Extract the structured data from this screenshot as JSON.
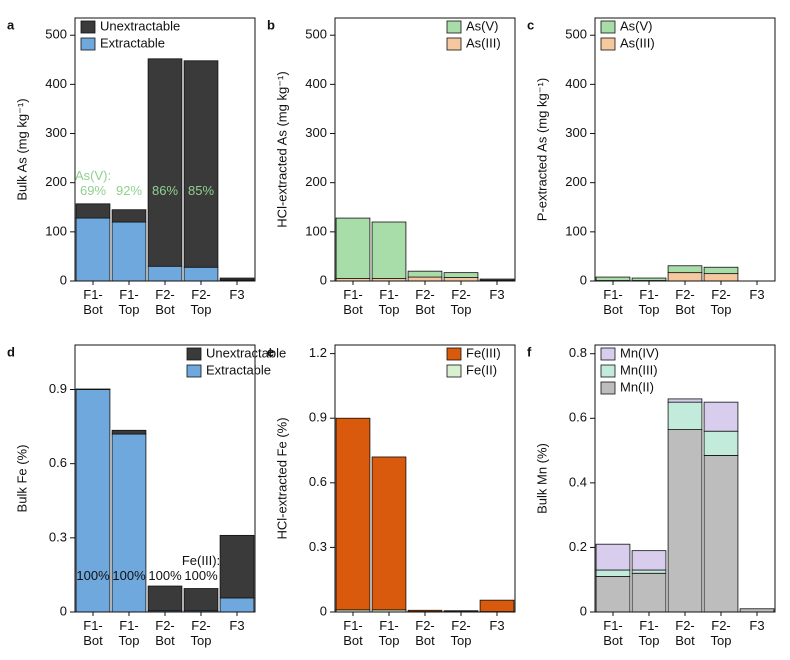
{
  "chart_data": [
    {
      "type": "bar",
      "stacked": true,
      "label": "a",
      "ylabel": "Bulk As (mg kg⁻¹)",
      "categories": [
        "F1-\nBot",
        "F1-\nTop",
        "F2-\nBot",
        "F2-\nTop",
        "F3"
      ],
      "series": [
        {
          "name": "Extractable",
          "color": "#6fa8dc",
          "values": [
            128,
            120,
            30,
            28,
            2
          ]
        },
        {
          "name": "Unextractable",
          "color": "#3a3a3a",
          "values": [
            29,
            25,
            422,
            420,
            4
          ]
        }
      ],
      "ylim": [
        0,
        535
      ],
      "yticks": [
        0,
        100,
        200,
        300,
        400,
        500
      ],
      "legend": "upper left",
      "annotations": [
        "As(V):\n69%",
        "92%",
        "86%",
        "85%",
        null
      ],
      "annotation_color": "#8fd18f"
    },
    {
      "type": "bar",
      "stacked": true,
      "label": "b",
      "ylabel": "HCl-extracted As (mg kg⁻¹)",
      "categories": [
        "F1-\nBot",
        "F1-\nTop",
        "F2-\nBot",
        "F2-\nTop",
        "F3"
      ],
      "series": [
        {
          "name": "As(III)",
          "color": "#f6c89f",
          "values": [
            5,
            5,
            8,
            7,
            2
          ]
        },
        {
          "name": "As(V)",
          "color": "#a8dca8",
          "values": [
            123,
            115,
            12,
            10,
            2
          ]
        }
      ],
      "ylim": [
        0,
        535
      ],
      "yticks": [
        0,
        100,
        200,
        300,
        400,
        500
      ],
      "legend": "upper right"
    },
    {
      "type": "bar",
      "stacked": true,
      "label": "c",
      "ylabel": "P-extracted As (mg kg⁻¹)",
      "categories": [
        "F1-\nBot",
        "F1-\nTop",
        "F2-\nBot",
        "F2-\nTop",
        "F3"
      ],
      "series": [
        {
          "name": "As(III)",
          "color": "#f6c89f",
          "values": [
            1,
            1,
            17,
            15,
            0
          ]
        },
        {
          "name": "As(V)",
          "color": "#a8dca8",
          "values": [
            7,
            5,
            14,
            13,
            0
          ]
        }
      ],
      "ylim": [
        0,
        535
      ],
      "yticks": [
        0,
        100,
        200,
        300,
        400,
        500
      ],
      "legend": "upper left"
    },
    {
      "type": "bar",
      "stacked": true,
      "label": "d",
      "ylabel": "Bulk Fe (%)",
      "categories": [
        "F1-\nBot",
        "F1-\nTop",
        "F2-\nBot",
        "F2-\nTop",
        "F3"
      ],
      "series": [
        {
          "name": "Extractable",
          "color": "#6fa8dc",
          "values": [
            0.9,
            0.72,
            0.005,
            0.005,
            0.057
          ]
        },
        {
          "name": "Unextractable",
          "color": "#3a3a3a",
          "values": [
            0.002,
            0.015,
            0.1,
            0.09,
            0.253
          ]
        }
      ],
      "ylim": [
        0,
        1.08
      ],
      "yticks": [
        0,
        0.3,
        0.6,
        0.9
      ],
      "legend": "upper right",
      "annotations": [
        "100%",
        "100%",
        "100%",
        "Fe(III):\n100%",
        null
      ],
      "annotation_color": "#111111"
    },
    {
      "type": "bar",
      "stacked": true,
      "label": "e",
      "ylabel": "HCl-extracted Fe (%)",
      "categories": [
        "F1-\nBot",
        "F1-\nTop",
        "F2-\nBot",
        "F2-\nTop",
        "F3"
      ],
      "series": [
        {
          "name": "Fe(II)",
          "color": "#d8f0cf",
          "values": [
            0.01,
            0.01,
            0.002,
            0.002,
            0.002
          ]
        },
        {
          "name": "Fe(III)",
          "color": "#d95a0c",
          "values": [
            0.89,
            0.71,
            0.006,
            0.004,
            0.053
          ]
        }
      ],
      "ylim": [
        0,
        1.24
      ],
      "yticks": [
        0,
        0.3,
        0.6,
        0.9,
        1.2
      ],
      "legend": "upper right"
    },
    {
      "type": "bar",
      "stacked": true,
      "label": "f",
      "ylabel": "Bulk Mn (%)",
      "categories": [
        "F1-\nBot",
        "F1-\nTop",
        "F2-\nBot",
        "F2-\nTop",
        "F3"
      ],
      "series": [
        {
          "name": "Mn(II)",
          "color": "#bdbdbd",
          "values": [
            0.11,
            0.12,
            0.565,
            0.485,
            0.01
          ]
        },
        {
          "name": "Mn(III)",
          "color": "#c2ebdc",
          "values": [
            0.02,
            0.01,
            0.085,
            0.075,
            0
          ]
        },
        {
          "name": "Mn(IV)",
          "color": "#d8cdec",
          "values": [
            0.08,
            0.06,
            0.01,
            0.09,
            0
          ]
        }
      ],
      "ylim": [
        0,
        0.827
      ],
      "yticks": [
        0,
        0.2,
        0.4,
        0.6,
        0.8
      ],
      "legend": "upper left"
    }
  ]
}
